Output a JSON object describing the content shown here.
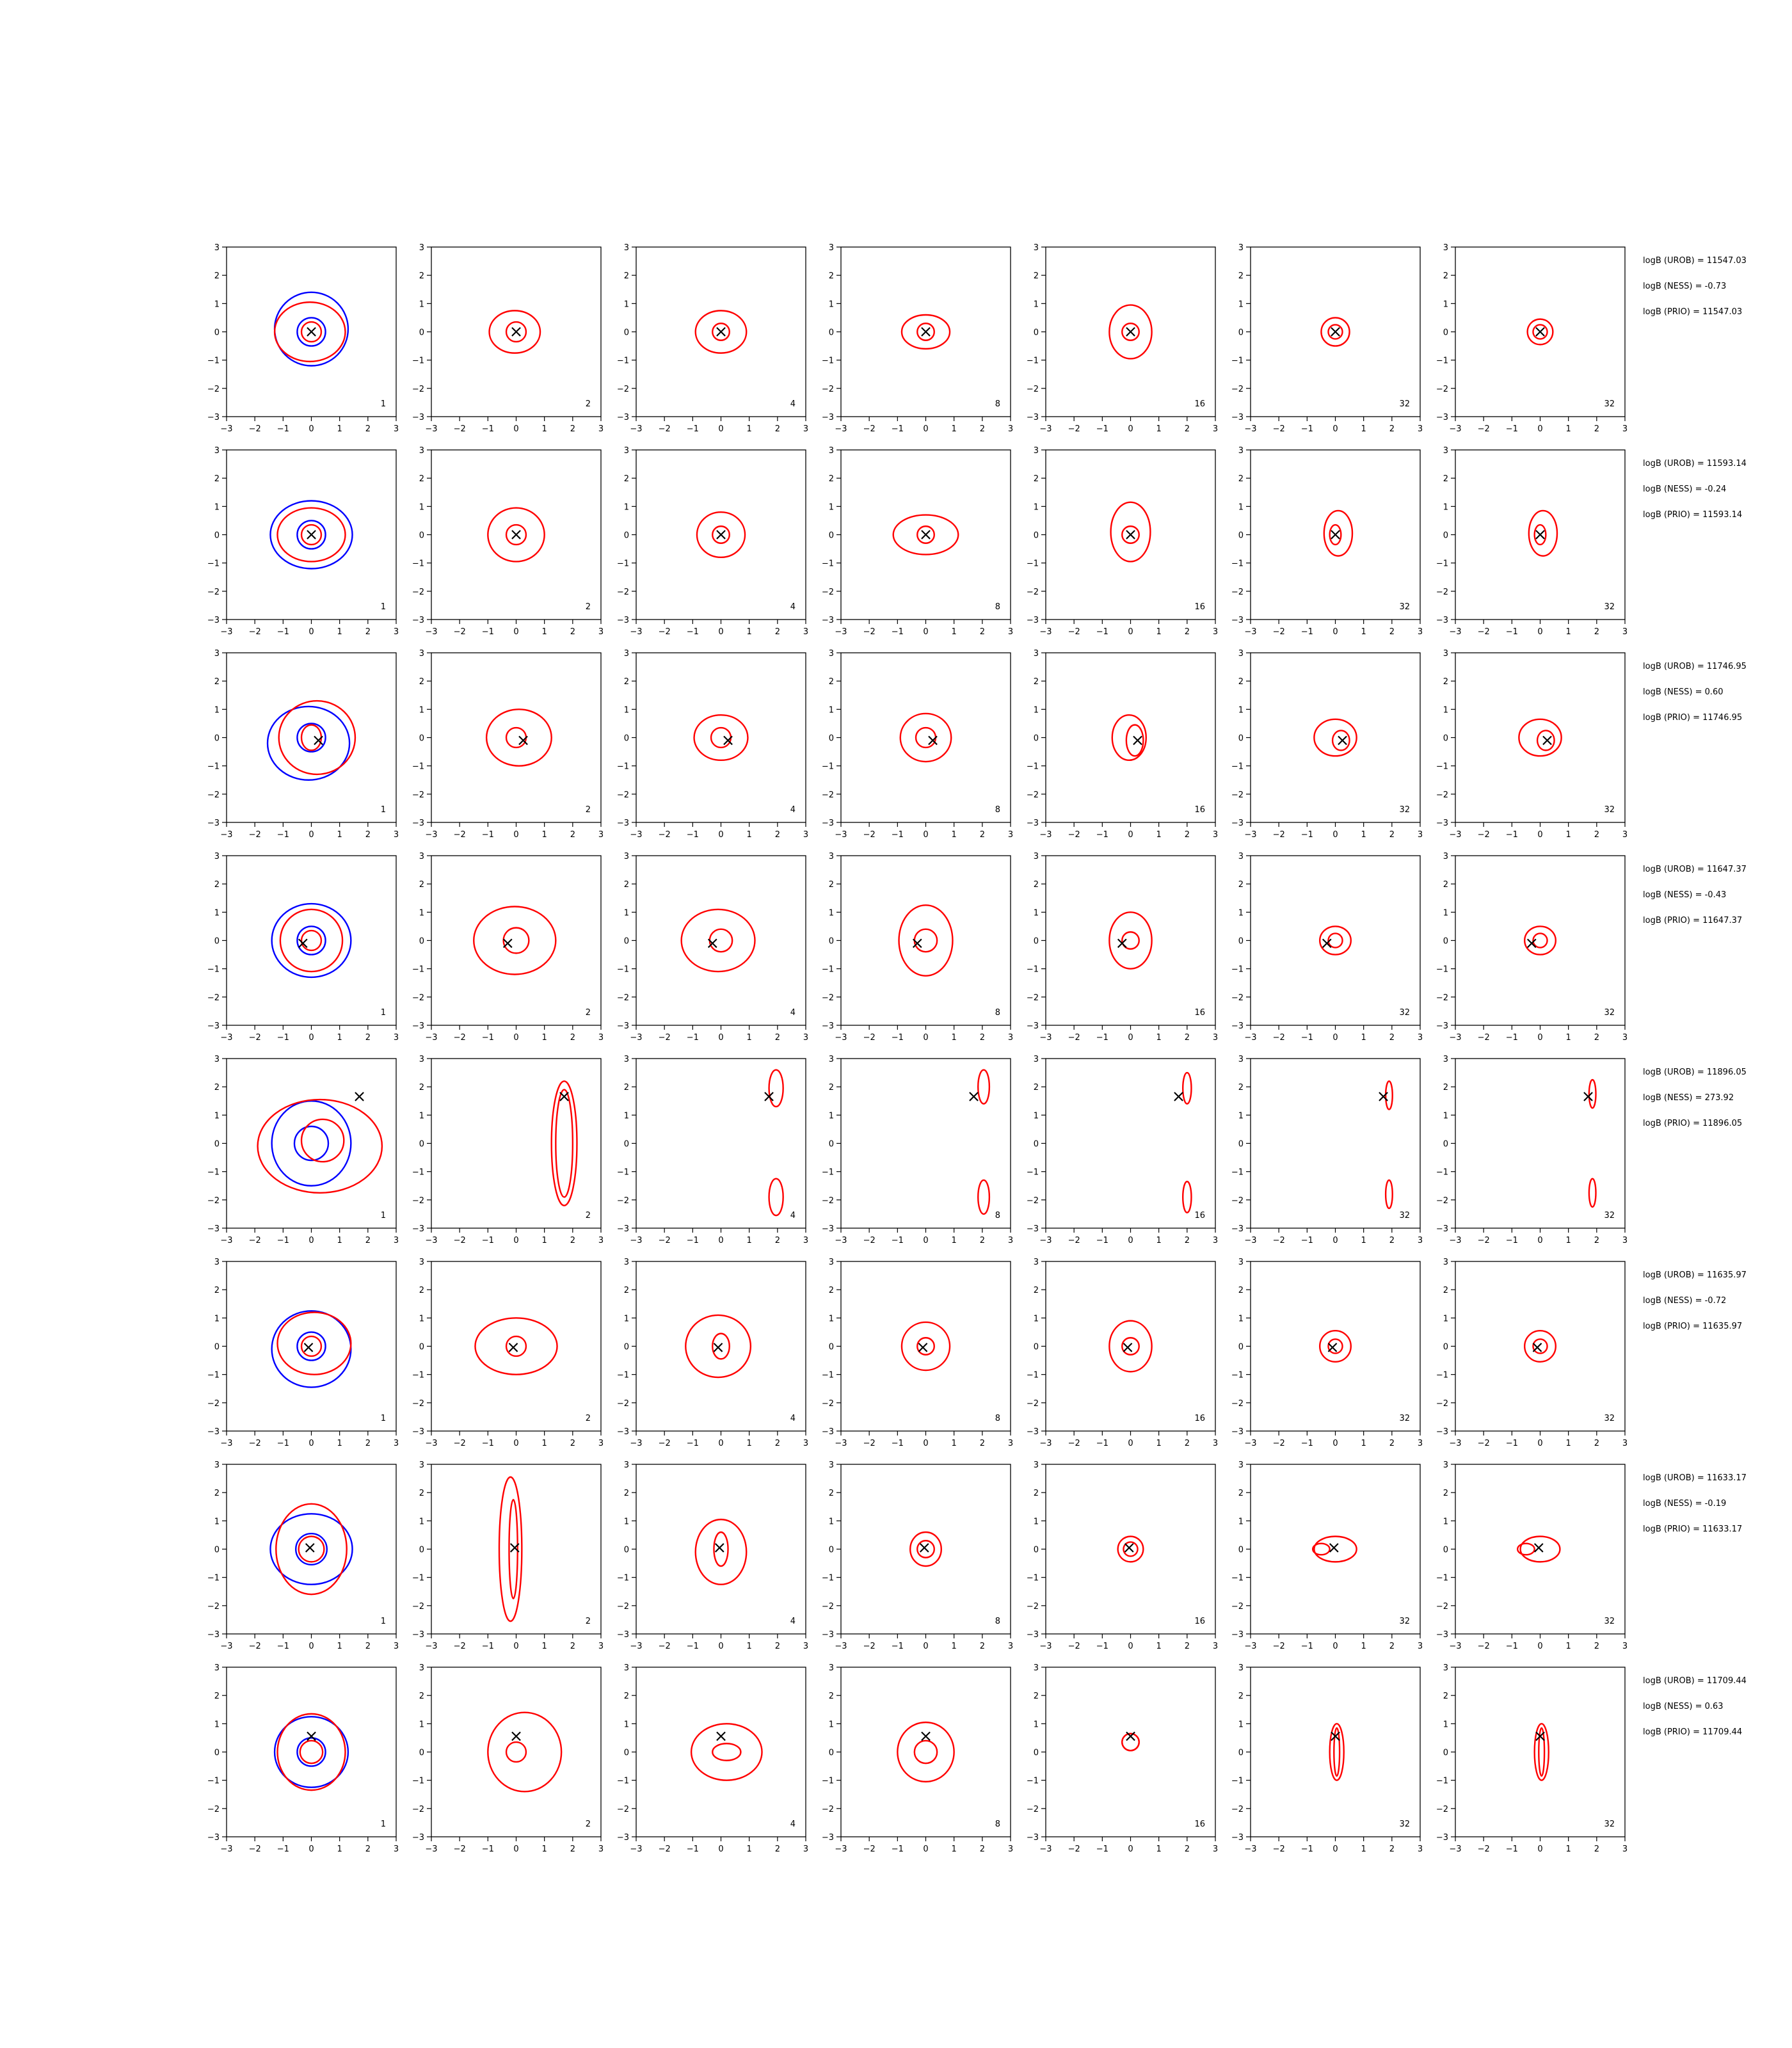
{
  "chart_data": {
    "type": "grid of 2D contour plots",
    "layout": {
      "rows": 8,
      "columns": 7
    },
    "axes": {
      "xlim": [
        -3,
        3
      ],
      "ylim": [
        -3,
        3
      ],
      "xticks": [
        "−3",
        "−2",
        "−1",
        "0",
        "1",
        "2",
        "3"
      ],
      "yticks": [
        "−3",
        "−2",
        "−1",
        "0",
        "1",
        "2",
        "3"
      ],
      "grid": false
    },
    "column_labels": [
      "1",
      "2",
      "4",
      "8",
      "16",
      "32",
      "32"
    ],
    "colors": {
      "reference": "#0000ff",
      "estimate": "#ff0000",
      "true_point": "#000000"
    },
    "marker": "×",
    "rows": [
      {
        "true_point": [
          0.0,
          0.0
        ],
        "stats": [
          "logB (UROB) = 11547.03",
          "logB (NESS) = -0.73",
          "logB (PRIO) = 11547.03"
        ],
        "reference_contours": [
          [
            0.0,
            0.0,
            0.5,
            0.5
          ],
          [
            0.0,
            0.1,
            1.3,
            1.3
          ]
        ],
        "estimate_contours": [
          [
            [
              0.0,
              0.0,
              0.35,
              0.35
            ],
            [
              -0.05,
              0.0,
              1.25,
              1.05
            ]
          ],
          [
            [
              0.0,
              0.0,
              0.35,
              0.35
            ],
            [
              -0.05,
              0.0,
              0.9,
              0.75
            ]
          ],
          [
            [
              0.0,
              0.0,
              0.3,
              0.3
            ],
            [
              0.0,
              0.0,
              0.9,
              0.75
            ]
          ],
          [
            [
              0.0,
              0.0,
              0.3,
              0.3
            ],
            [
              0.0,
              0.0,
              0.85,
              0.6
            ]
          ],
          [
            [
              0.0,
              0.0,
              0.3,
              0.3
            ],
            [
              0.0,
              0.0,
              0.75,
              0.95
            ]
          ],
          [
            [
              0.0,
              0.0,
              0.25,
              0.25
            ],
            [
              0.0,
              0.0,
              0.5,
              0.5
            ]
          ],
          [
            [
              0.0,
              0.0,
              0.25,
              0.25
            ],
            [
              0.0,
              0.0,
              0.45,
              0.45
            ]
          ]
        ]
      },
      {
        "true_point": [
          0.0,
          0.0
        ],
        "stats": [
          "logB (UROB) = 11593.14",
          "logB (NESS) = -0.24",
          "logB (PRIO) = 11593.14"
        ],
        "reference_contours": [
          [
            0.0,
            0.0,
            0.5,
            0.5
          ],
          [
            0.0,
            0.0,
            1.45,
            1.2
          ]
        ],
        "estimate_contours": [
          [
            [
              0.0,
              0.0,
              0.35,
              0.35
            ],
            [
              0.0,
              0.0,
              1.2,
              0.95
            ]
          ],
          [
            [
              0.0,
              0.0,
              0.35,
              0.35
            ],
            [
              0.0,
              0.0,
              1.0,
              0.95
            ]
          ],
          [
            [
              0.0,
              0.0,
              0.3,
              0.3
            ],
            [
              0.0,
              0.0,
              0.85,
              0.8
            ]
          ],
          [
            [
              0.0,
              0.0,
              0.3,
              0.3
            ],
            [
              0.0,
              0.0,
              1.15,
              0.7
            ]
          ],
          [
            [
              0.0,
              0.0,
              0.3,
              0.3
            ],
            [
              0.0,
              0.1,
              0.7,
              1.05
            ]
          ],
          [
            [
              0.0,
              0.0,
              0.2,
              0.35
            ],
            [
              0.1,
              0.05,
              0.5,
              0.8
            ]
          ],
          [
            [
              0.0,
              0.0,
              0.2,
              0.35
            ],
            [
              0.1,
              0.05,
              0.5,
              0.8
            ]
          ]
        ]
      },
      {
        "true_point": [
          0.25,
          -0.1
        ],
        "stats": [
          "logB (UROB) = 11746.95",
          "logB (NESS) = 0.60",
          "logB (PRIO) = 11746.95"
        ],
        "reference_contours": [
          [
            0.0,
            0.0,
            0.5,
            0.5
          ],
          [
            -0.1,
            -0.2,
            1.45,
            1.3
          ]
        ],
        "estimate_contours": [
          [
            [
              0.0,
              0.0,
              0.35,
              0.45
            ],
            [
              0.2,
              0.0,
              1.35,
              1.3
            ]
          ],
          [
            [
              0.0,
              0.0,
              0.35,
              0.35
            ],
            [
              0.1,
              0.0,
              1.15,
              1.0
            ]
          ],
          [
            [
              0.0,
              0.0,
              0.35,
              0.35
            ],
            [
              0.0,
              0.0,
              0.95,
              0.8
            ]
          ],
          [
            [
              0.0,
              0.0,
              0.35,
              0.35
            ],
            [
              0.0,
              0.0,
              0.9,
              0.85
            ]
          ],
          [
            [
              0.15,
              -0.1,
              0.3,
              0.55
            ],
            [
              -0.05,
              0.0,
              0.6,
              0.8
            ]
          ],
          [
            [
              0.2,
              -0.1,
              0.3,
              0.35
            ],
            [
              0.0,
              0.0,
              0.75,
              0.65
            ]
          ],
          [
            [
              0.2,
              -0.1,
              0.3,
              0.35
            ],
            [
              0.0,
              0.0,
              0.75,
              0.65
            ]
          ]
        ]
      },
      {
        "true_point": [
          -0.3,
          -0.1
        ],
        "stats": [
          "logB (UROB) = 11647.37",
          "logB (NESS) = -0.43",
          "logB (PRIO) = 11647.37"
        ],
        "reference_contours": [
          [
            0.0,
            0.0,
            0.5,
            0.5
          ],
          [
            0.0,
            0.0,
            1.4,
            1.3
          ]
        ],
        "estimate_contours": [
          [
            [
              0.0,
              0.0,
              0.35,
              0.35
            ],
            [
              0.0,
              0.0,
              1.1,
              1.1
            ]
          ],
          [
            [
              0.0,
              0.0,
              0.45,
              0.45
            ],
            [
              -0.05,
              0.0,
              1.45,
              1.2
            ]
          ],
          [
            [
              0.0,
              0.0,
              0.4,
              0.4
            ],
            [
              -0.1,
              0.0,
              1.3,
              1.1
            ]
          ],
          [
            [
              0.0,
              0.0,
              0.4,
              0.4
            ],
            [
              0.0,
              0.0,
              0.95,
              1.25
            ]
          ],
          [
            [
              0.0,
              0.0,
              0.3,
              0.3
            ],
            [
              0.0,
              0.0,
              0.75,
              1.0
            ]
          ],
          [
            [
              0.0,
              0.0,
              0.25,
              0.25
            ],
            [
              0.0,
              0.0,
              0.55,
              0.5
            ]
          ],
          [
            [
              0.0,
              0.0,
              0.25,
              0.25
            ],
            [
              0.0,
              0.0,
              0.55,
              0.5
            ]
          ]
        ]
      },
      {
        "true_point": [
          1.7,
          1.65
        ],
        "stats": [
          "logB (UROB) = 11896.05",
          "logB (NESS) = 273.92",
          "logB (PRIO) = 11896.05"
        ],
        "reference_contours": [
          [
            0.0,
            0.0,
            0.6,
            0.6
          ],
          [
            0.0,
            0.0,
            1.4,
            1.5
          ]
        ],
        "estimate_contours": [
          [
            [
              0.4,
              0.1,
              0.75,
              0.75
            ],
            [
              0.3,
              -0.1,
              2.2,
              1.65
            ]
          ],
          [
            [
              1.7,
              0.0,
              0.3,
              1.9
            ],
            [
              1.7,
              0.0,
              0.45,
              2.2
            ]
          ],
          [
            [
              1.95,
              -1.9,
              0.25,
              0.65
            ],
            [
              1.95,
              1.95,
              0.25,
              0.65
            ]
          ],
          [
            [
              2.05,
              -1.9,
              0.2,
              0.6
            ],
            [
              2.05,
              2.0,
              0.2,
              0.6
            ]
          ],
          [
            [
              2.0,
              -1.9,
              0.15,
              0.55
            ],
            [
              2.0,
              1.95,
              0.15,
              0.55
            ]
          ],
          [
            [
              1.9,
              -1.8,
              0.12,
              0.5
            ],
            [
              1.9,
              1.7,
              0.12,
              0.5
            ]
          ],
          [
            [
              1.85,
              -1.75,
              0.12,
              0.5
            ],
            [
              1.85,
              1.75,
              0.12,
              0.5
            ]
          ]
        ]
      },
      {
        "true_point": [
          -0.1,
          -0.05
        ],
        "stats": [
          "logB (UROB) = 11635.97",
          "logB (NESS) = -0.72",
          "logB (PRIO) = 11635.97"
        ],
        "reference_contours": [
          [
            0.0,
            0.0,
            0.5,
            0.5
          ],
          [
            0.0,
            -0.1,
            1.4,
            1.35
          ]
        ],
        "estimate_contours": [
          [
            [
              0.0,
              0.0,
              0.35,
              0.35
            ],
            [
              0.1,
              0.1,
              1.3,
              1.1
            ]
          ],
          [
            [
              0.0,
              0.0,
              0.35,
              0.35
            ],
            [
              0.0,
              0.0,
              1.45,
              1.0
            ]
          ],
          [
            [
              0.0,
              0.0,
              0.3,
              0.45
            ],
            [
              -0.1,
              0.0,
              1.15,
              1.1
            ]
          ],
          [
            [
              0.0,
              0.0,
              0.3,
              0.3
            ],
            [
              0.0,
              0.0,
              0.85,
              0.85
            ]
          ],
          [
            [
              0.0,
              0.0,
              0.3,
              0.3
            ],
            [
              0.0,
              0.0,
              0.75,
              0.9
            ]
          ],
          [
            [
              0.0,
              0.0,
              0.25,
              0.25
            ],
            [
              0.0,
              0.0,
              0.55,
              0.55
            ]
          ],
          [
            [
              0.0,
              0.0,
              0.25,
              0.25
            ],
            [
              0.0,
              0.0,
              0.55,
              0.55
            ]
          ]
        ]
      },
      {
        "true_point": [
          -0.05,
          0.05
        ],
        "stats": [
          "logB (UROB) = 11633.17",
          "logB (NESS) = -0.19",
          "logB (PRIO) = 11633.17"
        ],
        "reference_contours": [
          [
            0.0,
            0.0,
            0.55,
            0.55
          ],
          [
            0.0,
            0.0,
            1.45,
            1.25
          ]
        ],
        "estimate_contours": [
          [
            [
              0.0,
              0.0,
              0.45,
              0.45
            ],
            [
              0.0,
              0.0,
              1.25,
              1.6
            ]
          ],
          [
            [
              -0.1,
              0.0,
              0.15,
              1.75
            ],
            [
              -0.2,
              0.0,
              0.4,
              2.55
            ]
          ],
          [
            [
              0.0,
              0.0,
              0.25,
              0.6
            ],
            [
              0.0,
              -0.1,
              0.9,
              1.15
            ]
          ],
          [
            [
              0.0,
              0.0,
              0.3,
              0.3
            ],
            [
              0.0,
              0.0,
              0.55,
              0.6
            ]
          ],
          [
            [
              0.0,
              0.0,
              0.25,
              0.25
            ],
            [
              0.0,
              0.0,
              0.45,
              0.45
            ]
          ],
          [
            [
              -0.5,
              0.0,
              0.3,
              0.2
            ],
            [
              0.0,
              0.0,
              0.75,
              0.45
            ]
          ],
          [
            [
              -0.5,
              0.0,
              0.3,
              0.2
            ],
            [
              0.0,
              0.0,
              0.7,
              0.45
            ]
          ]
        ]
      },
      {
        "true_point": [
          0.0,
          0.55
        ],
        "stats": [
          "logB (UROB) = 11709.44",
          "logB (NESS) = 0.63",
          "logB (PRIO) = 11709.44"
        ],
        "reference_contours": [
          [
            0.0,
            0.0,
            0.5,
            0.5
          ],
          [
            0.0,
            0.0,
            1.3,
            1.25
          ]
        ],
        "estimate_contours": [
          [
            [
              0.0,
              0.0,
              0.4,
              0.4
            ],
            [
              0.0,
              0.0,
              1.2,
              1.35
            ]
          ],
          [
            [
              0.0,
              0.0,
              0.35,
              0.35
            ],
            [
              0.3,
              0.0,
              1.3,
              1.4
            ]
          ],
          [
            [
              0.2,
              0.0,
              0.5,
              0.3
            ],
            [
              0.2,
              0.0,
              1.25,
              1.0
            ]
          ],
          [
            [
              0.0,
              0.0,
              0.4,
              0.4
            ],
            [
              0.0,
              0.0,
              1.0,
              1.05
            ]
          ],
          [
            [
              0.0,
              0.35,
              0.3,
              0.3
            ],
            [
              0.0,
              0.35,
              0.3,
              0.3
            ]
          ],
          [
            [
              0.05,
              0.0,
              0.1,
              0.85
            ],
            [
              0.05,
              0.0,
              0.25,
              1.0
            ]
          ],
          [
            [
              0.05,
              0.0,
              0.1,
              0.85
            ],
            [
              0.05,
              0.0,
              0.25,
              1.0
            ]
          ]
        ]
      }
    ]
  }
}
